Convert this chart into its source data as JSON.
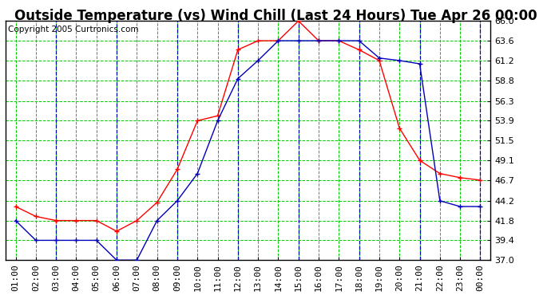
{
  "title": "Outside Temperature (vs) Wind Chill (Last 24 Hours) Tue Apr 26 00:00",
  "copyright": "Copyright 2005 Curtronics.com",
  "x_labels": [
    "01:00",
    "02:00",
    "03:00",
    "04:00",
    "05:00",
    "06:00",
    "07:00",
    "08:00",
    "09:00",
    "10:00",
    "11:00",
    "12:00",
    "13:00",
    "14:00",
    "15:00",
    "16:00",
    "17:00",
    "18:00",
    "19:00",
    "20:00",
    "21:00",
    "22:00",
    "23:00",
    "00:00"
  ],
  "outside_temp": [
    43.5,
    42.3,
    41.8,
    41.8,
    41.8,
    40.5,
    41.8,
    44.0,
    48.0,
    53.9,
    54.5,
    62.5,
    63.6,
    63.6,
    66.0,
    63.6,
    63.6,
    62.5,
    61.2,
    53.0,
    49.1,
    47.5,
    47.0,
    46.7
  ],
  "wind_chill": [
    41.8,
    39.4,
    39.4,
    39.4,
    39.4,
    37.0,
    37.0,
    41.8,
    44.2,
    47.5,
    53.9,
    59.0,
    61.2,
    63.6,
    63.6,
    63.6,
    63.6,
    63.6,
    61.5,
    61.2,
    60.8,
    44.2,
    43.5,
    43.5
  ],
  "temp_color": "#FF0000",
  "chill_color": "#0000BB",
  "bg_color": "#FFFFFF",
  "grid_color_major": "#0000AA",
  "grid_color_minor": "#00CC00",
  "ylim": [
    37.0,
    66.0
  ],
  "yticks": [
    37.0,
    39.4,
    41.8,
    44.2,
    46.7,
    49.1,
    51.5,
    53.9,
    56.3,
    58.8,
    61.2,
    63.6,
    66.0
  ],
  "title_fontsize": 12,
  "copyright_fontsize": 7.5,
  "tick_fontsize": 8,
  "blue_vlines": [
    2,
    5,
    8,
    11,
    14,
    17,
    20,
    23
  ]
}
